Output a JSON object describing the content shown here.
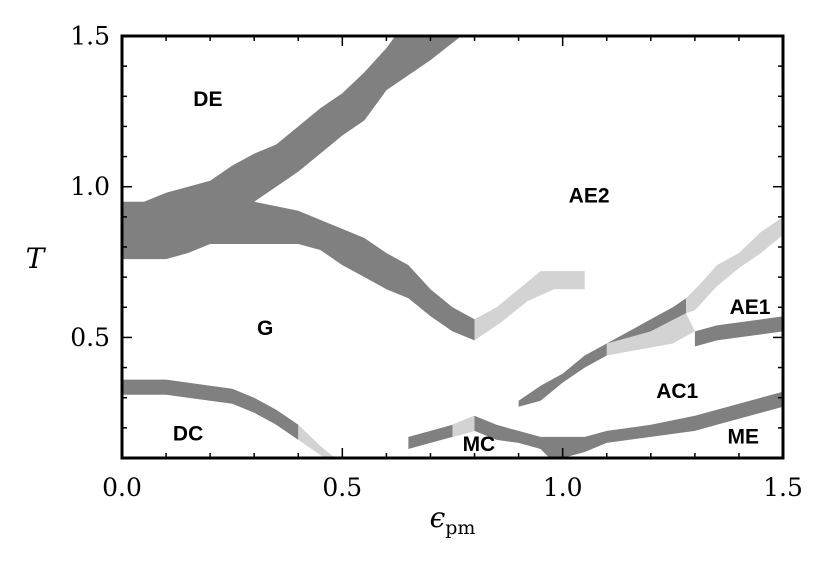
{
  "chart_data": {
    "type": "area",
    "xlabel": "ϵ",
    "xlabel_subscript": "pm",
    "ylabel": "T",
    "xlim": [
      0.0,
      1.5
    ],
    "ylim": [
      0.1,
      1.5
    ],
    "xticks": [
      "0.0",
      "0.5",
      "1.0",
      "1.5"
    ],
    "xtick_values": [
      0.0,
      0.5,
      1.0,
      1.5
    ],
    "yticks": [
      "0.5",
      "1.0",
      "1.5"
    ],
    "ytick_values": [
      0.5,
      1.0,
      1.5
    ],
    "grid": false,
    "colors": {
      "dark": "#808080",
      "light": "#d3d3d3",
      "frame": "#000000"
    },
    "region_labels": [
      {
        "text": "DE",
        "x": 0.195,
        "y": 1.29
      },
      {
        "text": "AE2",
        "x": 1.06,
        "y": 0.97
      },
      {
        "text": "G",
        "x": 0.325,
        "y": 0.53
      },
      {
        "text": "AE1",
        "x": 1.425,
        "y": 0.6
      },
      {
        "text": "AC1",
        "x": 1.26,
        "y": 0.32
      },
      {
        "text": "DC",
        "x": 0.15,
        "y": 0.18
      },
      {
        "text": "MC",
        "x": 0.81,
        "y": 0.145
      },
      {
        "text": "ME",
        "x": 1.41,
        "y": 0.17
      }
    ],
    "bands": [
      {
        "color": "dark",
        "points": [
          [
            0,
            0.95
          ],
          [
            0.05,
            0.95
          ],
          [
            0.1,
            0.98
          ],
          [
            0.15,
            1.0
          ],
          [
            0.2,
            1.02
          ],
          [
            0.25,
            1.07
          ],
          [
            0.3,
            1.11
          ],
          [
            0.35,
            1.14
          ],
          [
            0.4,
            1.2
          ],
          [
            0.45,
            1.26
          ],
          [
            0.5,
            1.31
          ],
          [
            0.55,
            1.38
          ],
          [
            0.6,
            1.46
          ],
          [
            0.62,
            1.5
          ],
          [
            0.77,
            1.5
          ],
          [
            0.7,
            1.42
          ],
          [
            0.6,
            1.32
          ],
          [
            0.55,
            1.22
          ],
          [
            0.5,
            1.17
          ],
          [
            0.45,
            1.11
          ],
          [
            0.4,
            1.05
          ],
          [
            0.3,
            0.95
          ],
          [
            0.4,
            0.92
          ],
          [
            0.45,
            0.89
          ],
          [
            0.5,
            0.86
          ],
          [
            0.55,
            0.83
          ],
          [
            0.6,
            0.78
          ],
          [
            0.65,
            0.74
          ],
          [
            0.7,
            0.66
          ],
          [
            0.75,
            0.6
          ],
          [
            0.8,
            0.56
          ],
          [
            0.8,
            0.49
          ],
          [
            0.75,
            0.52
          ],
          [
            0.7,
            0.57
          ],
          [
            0.65,
            0.63
          ],
          [
            0.6,
            0.66
          ],
          [
            0.55,
            0.7
          ],
          [
            0.5,
            0.74
          ],
          [
            0.45,
            0.79
          ],
          [
            0.4,
            0.81
          ],
          [
            0.3,
            0.81
          ],
          [
            0.2,
            0.81
          ],
          [
            0.15,
            0.78
          ],
          [
            0.1,
            0.76
          ],
          [
            0,
            0.76
          ]
        ]
      },
      {
        "color": "light",
        "points": [
          [
            0.8,
            0.56
          ],
          [
            0.85,
            0.6
          ],
          [
            0.9,
            0.66
          ],
          [
            0.95,
            0.72
          ],
          [
            1.05,
            0.72
          ],
          [
            1.05,
            0.66
          ],
          [
            0.98,
            0.66
          ],
          [
            0.92,
            0.62
          ],
          [
            0.86,
            0.55
          ],
          [
            0.8,
            0.49
          ]
        ]
      },
      {
        "color": "dark",
        "points": [
          [
            0,
            0.36
          ],
          [
            0.1,
            0.36
          ],
          [
            0.2,
            0.34
          ],
          [
            0.25,
            0.33
          ],
          [
            0.3,
            0.3
          ],
          [
            0.35,
            0.26
          ],
          [
            0.4,
            0.21
          ],
          [
            0.4,
            0.16
          ],
          [
            0.35,
            0.21
          ],
          [
            0.3,
            0.25
          ],
          [
            0.25,
            0.28
          ],
          [
            0.2,
            0.29
          ],
          [
            0.1,
            0.31
          ],
          [
            0,
            0.31
          ]
        ]
      },
      {
        "color": "light",
        "points": [
          [
            0.4,
            0.21
          ],
          [
            0.45,
            0.14
          ],
          [
            0.5,
            0.08
          ],
          [
            0.47,
            0.08
          ],
          [
            0.45,
            0.11
          ],
          [
            0.4,
            0.16
          ]
        ]
      },
      {
        "color": "light",
        "points": [
          [
            0.6,
            0.1
          ],
          [
            0.62,
            0.1
          ],
          [
            0.59,
            0.08
          ],
          [
            0.57,
            0.08
          ]
        ]
      },
      {
        "color": "dark",
        "points": [
          [
            0.65,
            0.17
          ],
          [
            0.7,
            0.19
          ],
          [
            0.75,
            0.21
          ],
          [
            0.8,
            0.24
          ],
          [
            0.85,
            0.21
          ],
          [
            0.9,
            0.19
          ],
          [
            0.95,
            0.17
          ],
          [
            1.05,
            0.17
          ],
          [
            1.1,
            0.19
          ],
          [
            1.2,
            0.21
          ],
          [
            1.3,
            0.24
          ],
          [
            1.35,
            0.26
          ],
          [
            1.4,
            0.28
          ],
          [
            1.45,
            0.3
          ],
          [
            1.5,
            0.32
          ],
          [
            1.5,
            0.27
          ],
          [
            1.45,
            0.25
          ],
          [
            1.4,
            0.23
          ],
          [
            1.35,
            0.21
          ],
          [
            1.3,
            0.19
          ],
          [
            1.2,
            0.17
          ],
          [
            1.1,
            0.15
          ],
          [
            1.05,
            0.12
          ],
          [
            1.0,
            0.1
          ],
          [
            0.97,
            0.1
          ],
          [
            0.95,
            0.13
          ],
          [
            0.9,
            0.15
          ],
          [
            0.85,
            0.16
          ],
          [
            0.8,
            0.19
          ],
          [
            0.75,
            0.17
          ],
          [
            0.7,
            0.15
          ],
          [
            0.65,
            0.13
          ],
          [
            0.65,
            0.1
          ],
          [
            0.65,
            0.15
          ]
        ]
      },
      {
        "color": "light",
        "points": [
          [
            0.75,
            0.21
          ],
          [
            0.8,
            0.24
          ],
          [
            0.8,
            0.19
          ],
          [
            0.75,
            0.17
          ]
        ]
      },
      {
        "color": "dark",
        "points": [
          [
            0.9,
            0.29
          ],
          [
            0.95,
            0.34
          ],
          [
            1.0,
            0.38
          ],
          [
            1.05,
            0.44
          ],
          [
            1.1,
            0.48
          ],
          [
            1.15,
            0.52
          ],
          [
            1.2,
            0.56
          ],
          [
            1.25,
            0.6
          ],
          [
            1.28,
            0.63
          ],
          [
            1.28,
            0.58
          ],
          [
            1.2,
            0.52
          ],
          [
            1.15,
            0.48
          ],
          [
            1.1,
            0.44
          ],
          [
            1.05,
            0.4
          ],
          [
            1.0,
            0.35
          ],
          [
            0.95,
            0.29
          ],
          [
            0.9,
            0.27
          ]
        ]
      },
      {
        "color": "light",
        "points": [
          [
            1.28,
            0.63
          ],
          [
            1.32,
            0.69
          ],
          [
            1.35,
            0.74
          ],
          [
            1.4,
            0.78
          ],
          [
            1.45,
            0.85
          ],
          [
            1.5,
            0.9
          ],
          [
            1.5,
            0.84
          ],
          [
            1.45,
            0.78
          ],
          [
            1.4,
            0.73
          ],
          [
            1.35,
            0.67
          ],
          [
            1.3,
            0.59
          ],
          [
            1.28,
            0.58
          ]
        ]
      },
      {
        "color": "light",
        "points": [
          [
            1.1,
            0.48
          ],
          [
            1.2,
            0.52
          ],
          [
            1.28,
            0.58
          ],
          [
            1.3,
            0.52
          ],
          [
            1.25,
            0.48
          ],
          [
            1.1,
            0.44
          ]
        ]
      },
      {
        "color": "dark",
        "points": [
          [
            1.3,
            0.52
          ],
          [
            1.35,
            0.54
          ],
          [
            1.4,
            0.55
          ],
          [
            1.5,
            0.57
          ],
          [
            1.5,
            0.52
          ],
          [
            1.4,
            0.5
          ],
          [
            1.35,
            0.49
          ],
          [
            1.3,
            0.47
          ]
        ]
      }
    ]
  }
}
